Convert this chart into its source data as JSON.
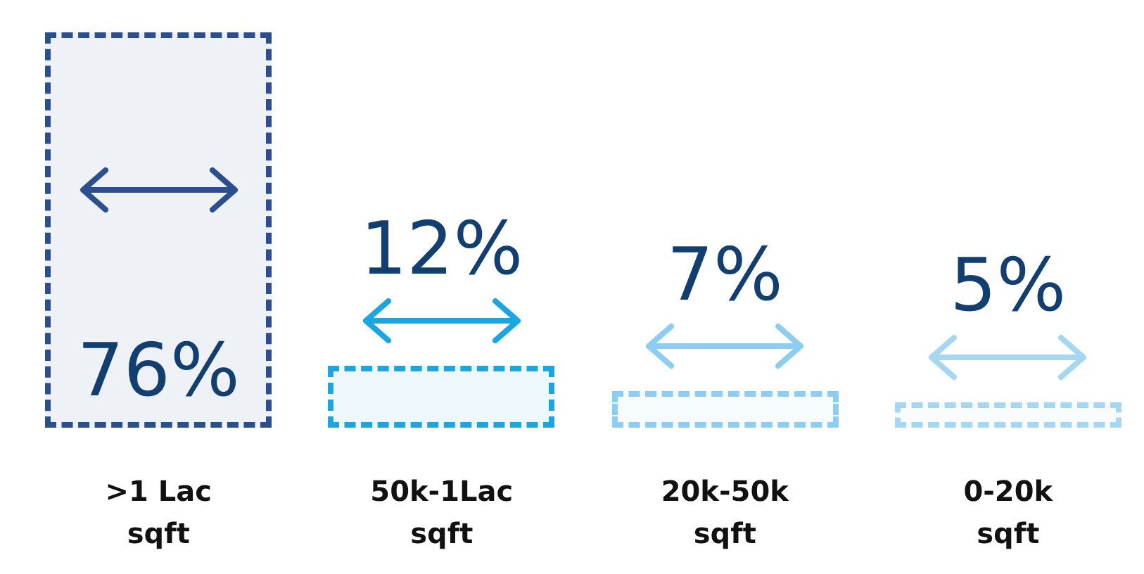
{
  "chart_data": {
    "type": "bar",
    "categories": [
      ">1 Lac\nsqft",
      "50k-1Lac\nsqft",
      "20k-50k\nsqft",
      "0-20k\nsqft"
    ],
    "values": [
      76,
      12,
      7,
      5
    ],
    "colors": [
      "#2b4f8e",
      "#1ba6e1",
      "#8ccdf1",
      "#a5d7f3"
    ],
    "value_labels": [
      "76%",
      "12%",
      "7%",
      "5%"
    ]
  }
}
